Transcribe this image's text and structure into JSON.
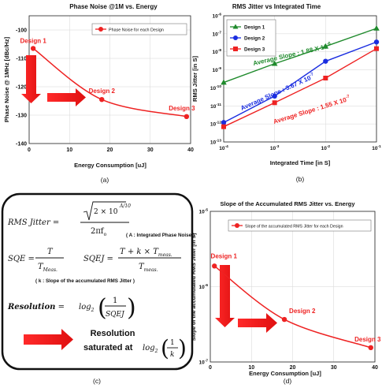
{
  "panel_labels": [
    "(a)",
    "(b)",
    "(c)",
    "(d)"
  ],
  "colors": {
    "red": "#ee2222",
    "blue": "#1a2de0",
    "green": "#1f8a2c",
    "text": "#111111",
    "grid": "#d6d6d6"
  },
  "chart_data": [
    {
      "id": "a",
      "type": "line",
      "title": "Phase Noise @1M vs. Energy",
      "xlabel": "Energy Consumption [uJ]",
      "ylabel": "Phase Noise @ 1MHz [dBc/Hz]",
      "xlim": [
        0,
        40
      ],
      "ylim": [
        -140,
        -95
      ],
      "x_ticks": [
        0,
        10,
        20,
        30,
        40
      ],
      "y_ticks": [
        -100,
        -110,
        -120,
        -130,
        -140
      ],
      "grid": true,
      "legend_position": "top-right",
      "series": [
        {
          "name": "Phase Noise for each Design",
          "color": "#ee2222",
          "marker": "circle",
          "points": [
            [
              1,
              -106.5
            ],
            [
              18,
              -124.5
            ],
            [
              39,
              -130.5
            ]
          ],
          "point_labels": [
            "Design 1",
            "Design 2",
            "Design 3"
          ]
        }
      ]
    },
    {
      "id": "b",
      "type": "line",
      "title": "RMS Jitter vs Integrated Time",
      "xlabel": "Integrated Time [in S]",
      "ylabel": "RMS Jitter [in S]",
      "xscale": "log",
      "yscale": "log",
      "xlim": [
        0.0001,
        0.1
      ],
      "ylim": [
        1e-13,
        1e-06
      ],
      "x_tick_labels": [
        "10-4",
        "10-3",
        "10-2",
        "10-1"
      ],
      "y_tick_labels": [
        "10-6",
        "10-7",
        "10-8",
        "10-9",
        "10-10",
        "10-11",
        "10-12",
        "10-13"
      ],
      "grid": true,
      "legend_position": "top-left",
      "series": [
        {
          "name": "Design 1",
          "color": "#1f8a2c",
          "marker": "triangle",
          "x": [
            0.0001,
            0.001,
            0.01,
            0.1
          ],
          "y": [
            2e-10,
            2.2e-09,
            2e-08,
            2e-07
          ]
        },
        {
          "name": "Design 2",
          "color": "#1a2de0",
          "marker": "circle",
          "x": [
            0.0001,
            0.001,
            0.01,
            0.1
          ],
          "y": [
            1.2e-12,
            3.5e-11,
            3e-09,
            3.5e-08
          ]
        },
        {
          "name": "Design 3",
          "color": "#ee2222",
          "marker": "square",
          "x": [
            0.0001,
            0.001,
            0.01,
            0.1
          ],
          "y": [
            7e-13,
            1.5e-11,
            3.5e-10,
            1.5e-08
          ]
        }
      ],
      "annotations": [
        {
          "text": "Average Slope : 1.88 X 10",
          "exp": "-6",
          "color": "#1f8a2c"
        },
        {
          "text": "Average Slope : 3.67 X 10",
          "exp": "-7",
          "color": "#1a2de0"
        },
        {
          "text": "Average Slope : 1.55 X 10",
          "exp": "-7",
          "color": "#ee2222"
        }
      ]
    },
    {
      "id": "d",
      "type": "line",
      "title": "Slope of the Accumulated RMS Jitter vs. Energy",
      "xlabel": "Energy Consumption [uJ]",
      "ylabel": "Slope of the accumulated RMS Jitter [in S]",
      "yscale": "log",
      "xlim": [
        0,
        40
      ],
      "ylim": [
        1e-07,
        1e-05
      ],
      "x_ticks": [
        0,
        10,
        20,
        30,
        40
      ],
      "y_tick_labels": [
        "10-5",
        "10-6",
        "10-7"
      ],
      "grid": true,
      "legend_position": "top",
      "series": [
        {
          "name": "Slope of the accumulated RMS Jitter for each Design",
          "color": "#ee2222",
          "marker": "circle",
          "points": [
            [
              1,
              1.88e-06
            ],
            [
              18,
              3.67e-07
            ],
            [
              39,
              1.55e-07
            ]
          ],
          "point_labels": [
            "Design 1",
            "Design 2",
            "Design 3"
          ]
        }
      ]
    }
  ],
  "equations": {
    "rms_jitter_lhs": "RMS Jitter",
    "rms_num_coef": "2 × 10",
    "rms_num_exp": "A/10",
    "rms_den": "2πf",
    "rms_den_sub": "o",
    "rms_note": "( A : Integrated Phase Noise )",
    "sqe_lhs": "SQE",
    "sqe_num": "T",
    "sqe_den": "T",
    "sqe_den_sub": "Meas.",
    "sqej_lhs": "SQEJ",
    "sqej_num": "T + k × T",
    "sqej_num_sub": "meas.",
    "sqej_den": "T",
    "sqej_den_sub": "meas.",
    "sqej_note": "( k : Slope of the accumulated RMS Jitter )",
    "resolution_lhs": "Resolution",
    "resolution_log": "log",
    "resolution_log_base": "2",
    "resolution_frac_num": "1",
    "resolution_frac_den": "SQEJ",
    "saturated_line1": "Resolution",
    "saturated_line2": "saturated at",
    "saturated_log": "log",
    "saturated_log_base": "2",
    "saturated_frac_num": "1",
    "saturated_frac_den": "k"
  }
}
